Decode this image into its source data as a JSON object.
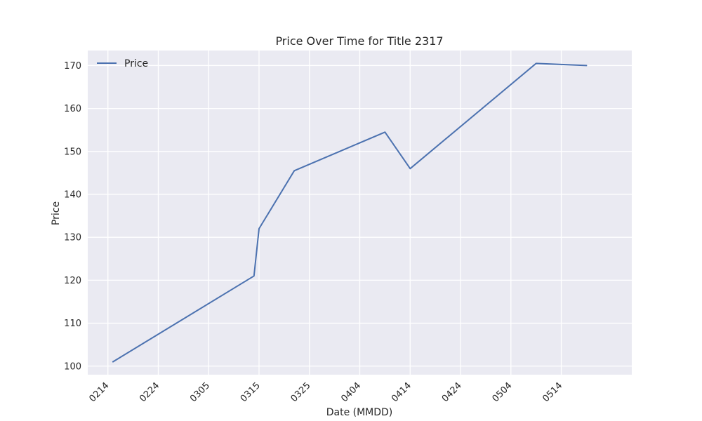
{
  "chart_data": {
    "type": "line",
    "title": "Price Over Time for Title 2317",
    "xlabel": "Date (MMDD)",
    "ylabel": "Price",
    "x_ticks": [
      "0214",
      "0224",
      "0305",
      "0315",
      "0325",
      "0404",
      "0414",
      "0424",
      "0504",
      "0514"
    ],
    "y_ticks": [
      100,
      110,
      120,
      130,
      140,
      150,
      160,
      170
    ],
    "ylim": [
      98,
      173.5
    ],
    "xlim": [
      "2024-02-10",
      "2024-05-28"
    ],
    "x_tick_dates": [
      "2024-02-14",
      "2024-02-24",
      "2024-03-05",
      "2024-03-15",
      "2024-03-25",
      "2024-04-04",
      "2024-04-14",
      "2024-04-24",
      "2024-05-04",
      "2024-05-14"
    ],
    "grid": true,
    "legend": "top-left",
    "series": [
      {
        "name": "Price",
        "color": "#4c72b0",
        "x": [
          "2024-02-15",
          "2024-03-14",
          "2024-03-15",
          "2024-03-22",
          "2024-03-31",
          "2024-04-09",
          "2024-04-14",
          "2024-05-09",
          "2024-05-19"
        ],
        "y": [
          101,
          121,
          132,
          145.5,
          150,
          154.5,
          146,
          170.5,
          170
        ]
      }
    ]
  }
}
